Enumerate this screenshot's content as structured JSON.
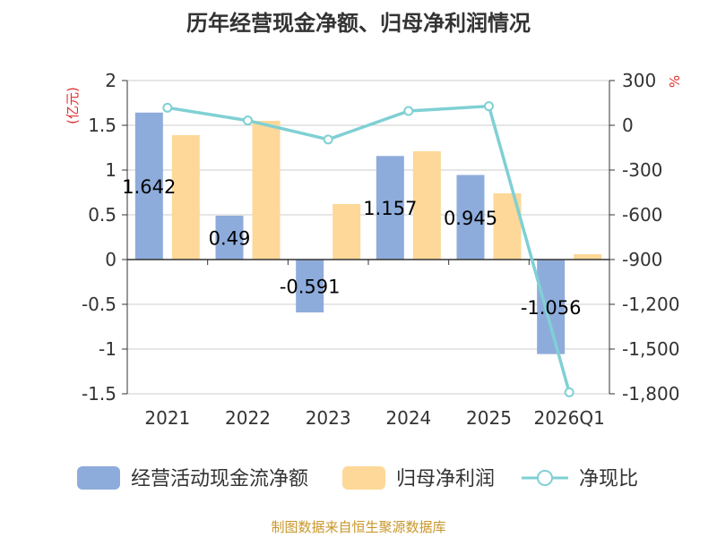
{
  "chart_data": {
    "type": "bar",
    "title": "历年经营现金净额、归母净利润情况",
    "categories": [
      "2021",
      "2022",
      "2023",
      "2024",
      "2025",
      "2026Q1"
    ],
    "left_axis": {
      "unit": "(亿元)",
      "ylim": [
        -1.5,
        2
      ],
      "ticks": [
        "2",
        "1.5",
        "1",
        "0.5",
        "0",
        "-0.5",
        "-1",
        "-1.5"
      ],
      "tick_values": [
        2,
        1.5,
        1,
        0.5,
        0,
        -0.5,
        -1,
        -1.5
      ]
    },
    "right_axis": {
      "unit": "%",
      "ylim": [
        -1800,
        300
      ],
      "ticks": [
        "300",
        "0",
        "-300",
        "-600",
        "-900",
        "-1,200",
        "-1,500",
        "-1,800"
      ],
      "tick_values": [
        300,
        0,
        -300,
        -600,
        -900,
        -1200,
        -1500,
        -1800
      ]
    },
    "series": [
      {
        "name": "经营活动现金流净额",
        "type": "bar",
        "axis": "left",
        "color": "#8eacdb",
        "values": [
          1.642,
          0.49,
          -0.591,
          1.157,
          0.945,
          -1.056
        ],
        "labels": [
          "1.642",
          "0.49",
          "-0.591",
          "1.157",
          "0.945",
          "-1.056"
        ]
      },
      {
        "name": "归母净利润",
        "type": "bar",
        "axis": "left",
        "color": "#fdd898",
        "values": [
          1.39,
          1.55,
          0.62,
          1.21,
          0.74,
          0.06
        ]
      },
      {
        "name": "净现比",
        "type": "line",
        "axis": "right",
        "color": "#7fd0d4",
        "values": [
          118,
          32,
          -95,
          96,
          128,
          -1790
        ]
      }
    ],
    "grid": true,
    "legend_position": "bottom"
  },
  "source": "制图数据来自恒生聚源数据库"
}
